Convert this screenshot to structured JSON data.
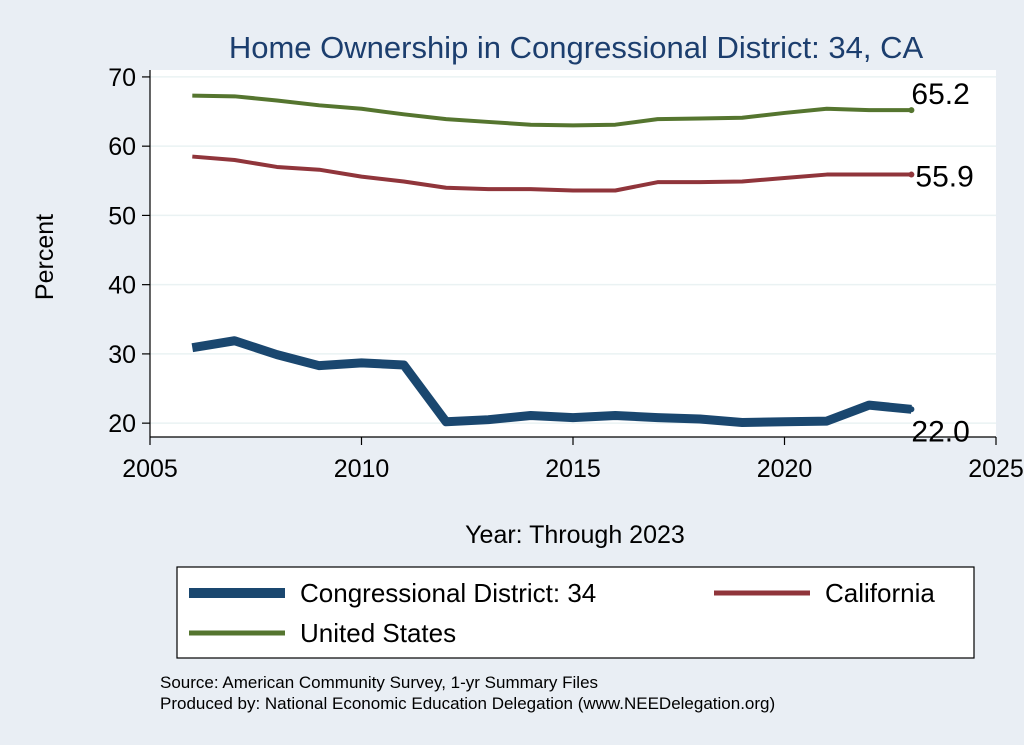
{
  "chart_data": {
    "type": "line",
    "title": "Home Ownership in Congressional District:  34, CA",
    "xlabel": "Year: Through 2023",
    "ylabel": "Percent",
    "xlim": [
      2005,
      2025
    ],
    "ylim": [
      18,
      71
    ],
    "xticks": [
      "2005",
      "2010",
      "2015",
      "2020",
      "2025"
    ],
    "yticks": [
      "20",
      "30",
      "40",
      "50",
      "60",
      "70"
    ],
    "grid": true,
    "legend_position": "bottom",
    "x": [
      2006,
      2007,
      2008,
      2009,
      2010,
      2011,
      2012,
      2013,
      2014,
      2015,
      2016,
      2017,
      2018,
      2019,
      2020,
      2021,
      2022,
      2023
    ],
    "series": [
      {
        "name": "Congressional District:  34",
        "color": "#1a476f",
        "values": [
          30.9,
          31.9,
          29.9,
          28.3,
          28.7,
          28.4,
          20.2,
          20.5,
          21.1,
          20.8,
          21.1,
          20.8,
          20.6,
          20.1,
          20.2,
          20.3,
          22.6,
          22.0
        ],
        "end_label": "22.0"
      },
      {
        "name": "California",
        "color": "#90353b",
        "values": [
          58.5,
          58.0,
          57.0,
          56.6,
          55.6,
          54.9,
          54.0,
          53.8,
          53.8,
          53.6,
          53.6,
          54.8,
          54.8,
          54.9,
          55.4,
          55.9,
          55.9,
          55.9
        ],
        "end_label": "55.9"
      },
      {
        "name": "United States",
        "color": "#55752f",
        "values": [
          67.3,
          67.2,
          66.6,
          65.9,
          65.4,
          64.6,
          63.9,
          63.5,
          63.1,
          63.0,
          63.1,
          63.9,
          64.0,
          64.1,
          64.8,
          65.4,
          65.2,
          65.2
        ],
        "end_label": "65.2"
      }
    ]
  },
  "footer": {
    "source": "Source: American Community Survey, 1-yr Summary Files",
    "produced_by": "Produced by: National Economic Education Delegation (www.NEEDelegation.org)"
  }
}
